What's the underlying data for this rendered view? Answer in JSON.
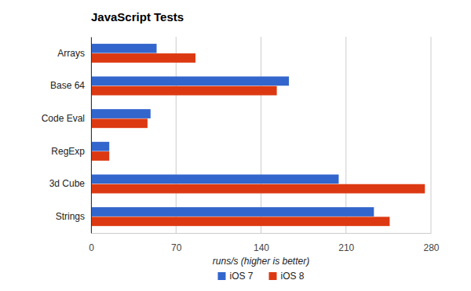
{
  "chart_data": {
    "type": "bar",
    "orientation": "horizontal",
    "title": "JavaScript Tests",
    "categories": [
      "Arrays",
      "Base 64",
      "Code Eval",
      "RegExp",
      "3d Cube",
      "Strings"
    ],
    "series": [
      {
        "name": "iOS 7",
        "color": "#3366cc",
        "values": [
          54,
          163,
          49,
          15,
          204,
          233
        ]
      },
      {
        "name": "iOS 8",
        "color": "#dc3912",
        "values": [
          86,
          153,
          46.5,
          15,
          275,
          246
        ]
      }
    ],
    "x_label": "runs/s (higher is better)",
    "xlim": [
      0,
      280
    ],
    "xticks": [
      0,
      70,
      140,
      210,
      280
    ],
    "grid": true,
    "legend": "bottom"
  }
}
